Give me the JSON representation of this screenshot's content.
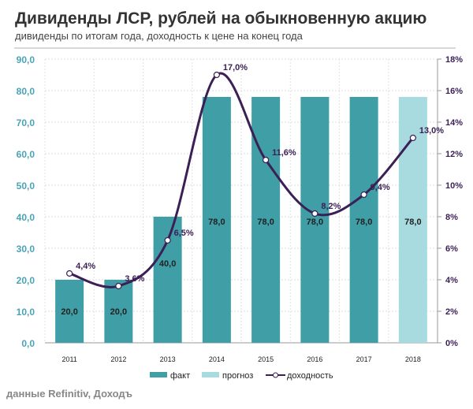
{
  "header": {
    "title": "Дивиденды ЛСР, рублей на обыкновенную  акцию",
    "subtitle": "дивиденды по итогам года, доходность к цене на  конец года"
  },
  "source": "данные Refinitiv, Доходъ",
  "chart_data": {
    "type": "bar+line",
    "categories": [
      "2011",
      "2012",
      "2013",
      "2014",
      "2015",
      "2016",
      "2017",
      "2018"
    ],
    "series": [
      {
        "name": "факт",
        "type": "bar",
        "axis": "left",
        "values": [
          20.0,
          20.0,
          40.0,
          78.0,
          78.0,
          78.0,
          78.0,
          null
        ],
        "labels": [
          "20,0",
          "20,0",
          "40,0",
          "78,0",
          "78,0",
          "78,0",
          "78,0",
          ""
        ]
      },
      {
        "name": "прогноз",
        "type": "bar",
        "axis": "left",
        "values": [
          null,
          null,
          null,
          null,
          null,
          null,
          null,
          78.0
        ],
        "labels": [
          "",
          "",
          "",
          "",
          "",
          "",
          "",
          "78,0"
        ]
      },
      {
        "name": "доходность",
        "type": "line",
        "axis": "right",
        "values": [
          4.4,
          3.6,
          6.5,
          17.0,
          11.6,
          8.2,
          9.4,
          13.0
        ],
        "labels": [
          "4,4%",
          "3,6%",
          "6,5%",
          "17,0%",
          "11,6%",
          "8,2%",
          "9,4%",
          "13,0%"
        ]
      }
    ],
    "left_axis": {
      "range": [
        0,
        90
      ],
      "ticks": [
        "0,0",
        "10,0",
        "20,0",
        "30,0",
        "40,0",
        "50,0",
        "60,0",
        "70,0",
        "80,0",
        "90,0"
      ]
    },
    "right_axis": {
      "range": [
        0,
        18
      ],
      "ticks": [
        "0%",
        "2%",
        "4%",
        "6%",
        "8%",
        "10%",
        "12%",
        "14%",
        "16%",
        "18%"
      ]
    },
    "grid": true,
    "legend": {
      "placement": "bottom",
      "items": [
        "факт",
        "прогноз",
        "доходность"
      ]
    },
    "colors": {
      "fact": "#3f9ea6",
      "forecast": "#a8dbe0",
      "yield": "#3b1f55",
      "left_axis": "#4aa3b5",
      "right_axis": "#3b1f55"
    }
  }
}
